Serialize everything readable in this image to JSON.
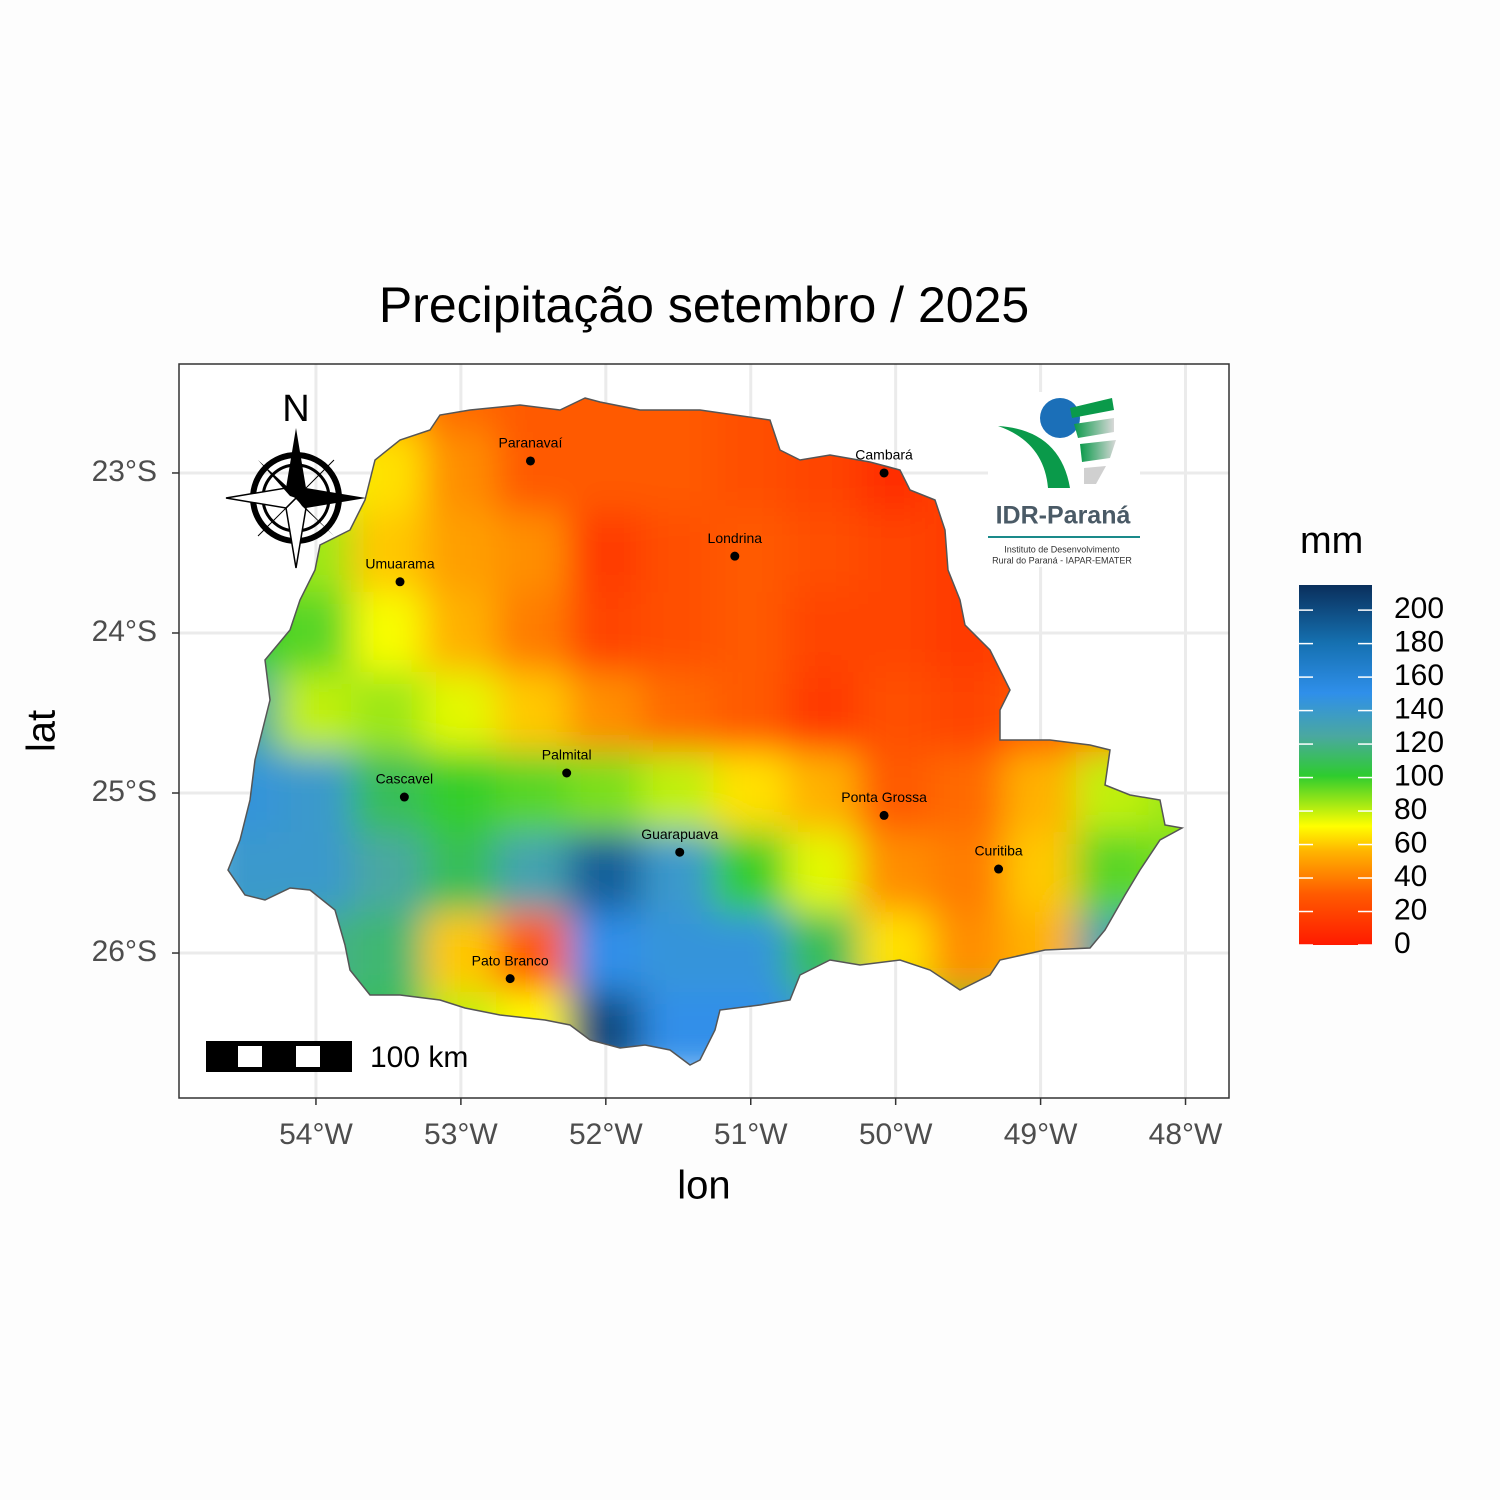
{
  "chart_data": {
    "type": "map",
    "title": "Precipitação setembro / 2025",
    "x_label": "lon",
    "y_label": "lat",
    "xlim": [
      -54.945,
      -47.7
    ],
    "ylim": [
      -26.906,
      -22.319
    ],
    "xticks": [
      {
        "value": -54,
        "label": "54°W"
      },
      {
        "value": -53,
        "label": "53°W"
      },
      {
        "value": -52,
        "label": "52°W"
      },
      {
        "value": -51,
        "label": "51°W"
      },
      {
        "value": -50,
        "label": "50°W"
      },
      {
        "value": -49,
        "label": "49°W"
      },
      {
        "value": -48,
        "label": "48°W"
      }
    ],
    "yticks": [
      {
        "value": -23,
        "label": "23°S"
      },
      {
        "value": -24,
        "label": "24°S"
      },
      {
        "value": -25,
        "label": "25°S"
      },
      {
        "value": -26,
        "label": "26°S"
      }
    ],
    "grid": true,
    "field": {
      "lon": [
        -54.5,
        -54,
        -53.5,
        -53,
        -52.5,
        -52,
        -51.5,
        -51,
        -50.5,
        -50,
        -49.5,
        -49,
        -48.5,
        -48
      ],
      "lat": [
        -22.5,
        -23,
        -23.5,
        -24,
        -24.5,
        -25,
        -25.5,
        -26,
        -26.5
      ],
      "values": [
        [
          70,
          65,
          50,
          35,
          30,
          30,
          30,
          25,
          20,
          20,
          20,
          20,
          20,
          20
        ],
        [
          80,
          75,
          65,
          45,
          30,
          30,
          30,
          25,
          20,
          10,
          20,
          20,
          20,
          20
        ],
        [
          90,
          85,
          60,
          50,
          45,
          15,
          25,
          30,
          25,
          20,
          15,
          20,
          20,
          20
        ],
        [
          100,
          95,
          72,
          55,
          40,
          20,
          25,
          30,
          20,
          20,
          15,
          20,
          20,
          20
        ],
        [
          125,
          80,
          85,
          75,
          60,
          45,
          35,
          30,
          15,
          25,
          20,
          30,
          40,
          40
        ],
        [
          145,
          140,
          110,
          100,
          95,
          90,
          80,
          65,
          55,
          30,
          35,
          55,
          80,
          85
        ],
        [
          140,
          140,
          125,
          110,
          130,
          190,
          140,
          100,
          75,
          45,
          40,
          60,
          95,
          90
        ],
        [
          130,
          120,
          115,
          60,
          30,
          150,
          145,
          145,
          110,
          65,
          45,
          55,
          130,
          130
        ],
        [
          120,
          115,
          110,
          80,
          70,
          200,
          150,
          150,
          140,
          100,
          100,
          100,
          100,
          100
        ]
      ]
    },
    "legend": {
      "title": "mm",
      "range": [
        0,
        215
      ],
      "ticks": [
        0,
        20,
        40,
        60,
        80,
        100,
        120,
        140,
        160,
        180,
        200
      ]
    },
    "cities": [
      {
        "name": "Paranavaí",
        "lon": -52.52,
        "lat": -22.925
      },
      {
        "name": "Cambará",
        "lon": -50.08,
        "lat": -23.0
      },
      {
        "name": "Londrina",
        "lon": -51.11,
        "lat": -23.52
      },
      {
        "name": "Umuarama",
        "lon": -53.42,
        "lat": -23.68
      },
      {
        "name": "Palmital",
        "lon": -52.27,
        "lat": -24.875
      },
      {
        "name": "Cascavel",
        "lon": -53.39,
        "lat": -25.025
      },
      {
        "name": "Ponta Grossa",
        "lon": -50.08,
        "lat": -25.14
      },
      {
        "name": "Guarapuava",
        "lon": -51.49,
        "lat": -25.37
      },
      {
        "name": "Curitiba",
        "lon": -49.29,
        "lat": -25.475
      },
      {
        "name": "Pato Branco",
        "lon": -52.66,
        "lat": -26.16
      }
    ],
    "north": "N",
    "scale_bar": "100 km",
    "logo": {
      "name": "IDR-Paraná",
      "subtitle": [
        "Instituto de Desenvolvimento",
        "Rural do Paraná - IAPAR-EMATER"
      ]
    }
  }
}
